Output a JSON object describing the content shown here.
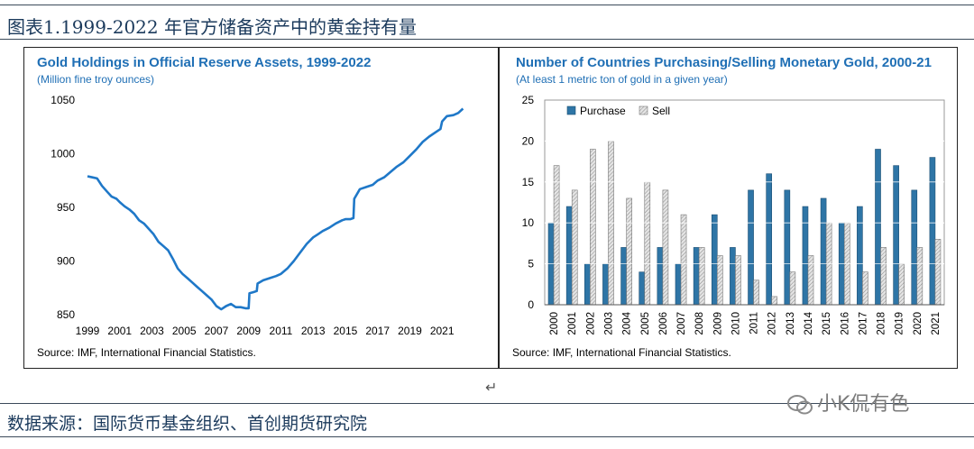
{
  "figure": {
    "title": "图表1.1999-2022 年官方储备资产中的黄金持有量",
    "footer": "数据来源：国际货币基金组织、首创期货研究院",
    "watermark": "小K侃有色",
    "return_mark": "↵"
  },
  "left_panel": {
    "title": "Gold Holdings in Official Reserve Assets, 1999-2022",
    "subtitle": "(Million fine troy ounces)",
    "source": "Source: IMF, International Financial Statistics."
  },
  "right_panel": {
    "title": "Number of Countries Purchasing/Selling Monetary Gold, 2000-21",
    "subtitle": "(At least 1 metric ton of gold in a given year)",
    "source": "Source: IMF, International Financial Statistics."
  },
  "chart_data": [
    {
      "type": "line",
      "color": "#1f78c8",
      "xlim": [
        1999,
        2022.5
      ],
      "ylim": [
        850,
        1050
      ],
      "xticks": [
        "1999",
        "2001",
        "2003",
        "2005",
        "2007",
        "2009",
        "2011",
        "2013",
        "2015",
        "2017",
        "2019",
        "2021"
      ],
      "yticks": [
        "850",
        "900",
        "950",
        "1000",
        "1050"
      ],
      "series": [
        {
          "x": [
            1999.0,
            1999.3,
            1999.6,
            1999.9,
            2000.2,
            2000.5,
            2000.8,
            2001.0,
            2001.3,
            2001.6,
            2001.9,
            2002.2,
            2002.5,
            2002.8,
            2003.1,
            2003.4,
            2003.7,
            2004.0,
            2004.3,
            2004.6,
            2004.9,
            2005.2,
            2005.5,
            2005.8,
            2006.1,
            2006.4,
            2006.7,
            2007.0,
            2007.3,
            2007.6,
            2007.9,
            2008.0,
            2008.2,
            2008.5,
            2008.8,
            2009.0,
            2009.05,
            2009.3,
            2009.5,
            2009.55,
            2009.9,
            2010.3,
            2010.7,
            2011.0,
            2011.4,
            2011.8,
            2012.2,
            2012.6,
            2013.0,
            2013.3,
            2013.6,
            2014.0,
            2014.4,
            2014.8,
            2015.0,
            2015.3,
            2015.5,
            2015.55,
            2015.9,
            2016.3,
            2016.7,
            2017.0,
            2017.4,
            2017.8,
            2018.2,
            2018.6,
            2019.0,
            2019.4,
            2019.8,
            2020.2,
            2020.6,
            2020.9,
            2021.0,
            2021.3,
            2021.7,
            2022.0,
            2022.3
          ],
          "y": [
            979,
            978,
            977,
            970,
            965,
            960,
            958,
            955,
            951,
            948,
            944,
            938,
            935,
            930,
            925,
            918,
            914,
            910,
            902,
            893,
            888,
            884,
            880,
            876,
            872,
            868,
            864,
            858,
            855,
            858,
            860,
            859,
            857,
            857,
            856,
            856,
            870,
            871,
            872,
            879,
            882,
            884,
            886,
            888,
            893,
            900,
            908,
            916,
            922,
            925,
            928,
            931,
            935,
            938,
            939,
            939,
            940,
            958,
            967,
            969,
            971,
            975,
            978,
            983,
            988,
            992,
            998,
            1004,
            1011,
            1016,
            1020,
            1023,
            1030,
            1035,
            1036,
            1038,
            1042
          ]
        }
      ]
    },
    {
      "type": "bar",
      "categories": [
        "2000",
        "2001",
        "2002",
        "2003",
        "2004",
        "2005",
        "2006",
        "2007",
        "2008",
        "2009",
        "2010",
        "2011",
        "2012",
        "2013",
        "2014",
        "2015",
        "2016",
        "2017",
        "2018",
        "2019",
        "2020",
        "2021"
      ],
      "ylim": [
        0,
        25
      ],
      "yticks": [
        "0",
        "5",
        "10",
        "15",
        "20",
        "25"
      ],
      "legend_position": "top-left",
      "series": [
        {
          "name": "Purchase",
          "color": "#2e75a6",
          "values": [
            10,
            12,
            5,
            5,
            7,
            4,
            7,
            5,
            7,
            11,
            7,
            14,
            16,
            14,
            12,
            13,
            10,
            12,
            19,
            17,
            14,
            18
          ]
        },
        {
          "name": "Sell",
          "color": "#cccccc",
          "pattern": "hatched",
          "values": [
            17,
            14,
            19,
            20,
            13,
            15,
            14,
            11,
            7,
            6,
            6,
            3,
            1,
            4,
            6,
            10,
            10,
            4,
            7,
            5,
            7,
            8
          ]
        }
      ]
    }
  ]
}
